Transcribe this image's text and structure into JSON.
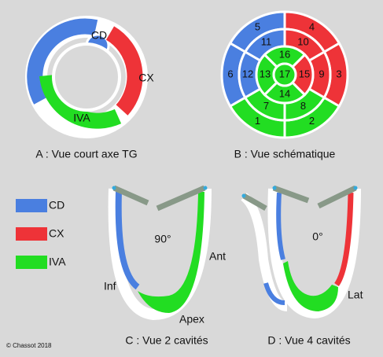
{
  "panel_a": {
    "labels": [
      "CD",
      "CX",
      "IVA"
    ],
    "caption": "A : Vue court axe TG"
  },
  "panel_b": {
    "segments": [
      1,
      2,
      3,
      4,
      5,
      6,
      7,
      8,
      9,
      10,
      11,
      12,
      13,
      14,
      15,
      16,
      17
    ],
    "caption": "B : Vue schématique"
  },
  "legend": [
    "CD",
    "CX",
    "IVA"
  ],
  "panel_c": {
    "angle": "90°",
    "labels": [
      "Ant",
      "Inf",
      "Apex"
    ],
    "caption": "C : Vue 2 cavités"
  },
  "panel_d": {
    "angle": "0°",
    "labels": [
      "Lat"
    ],
    "caption": "D : Vue 4 cavités"
  },
  "copyright": "© Chassot 2018"
}
